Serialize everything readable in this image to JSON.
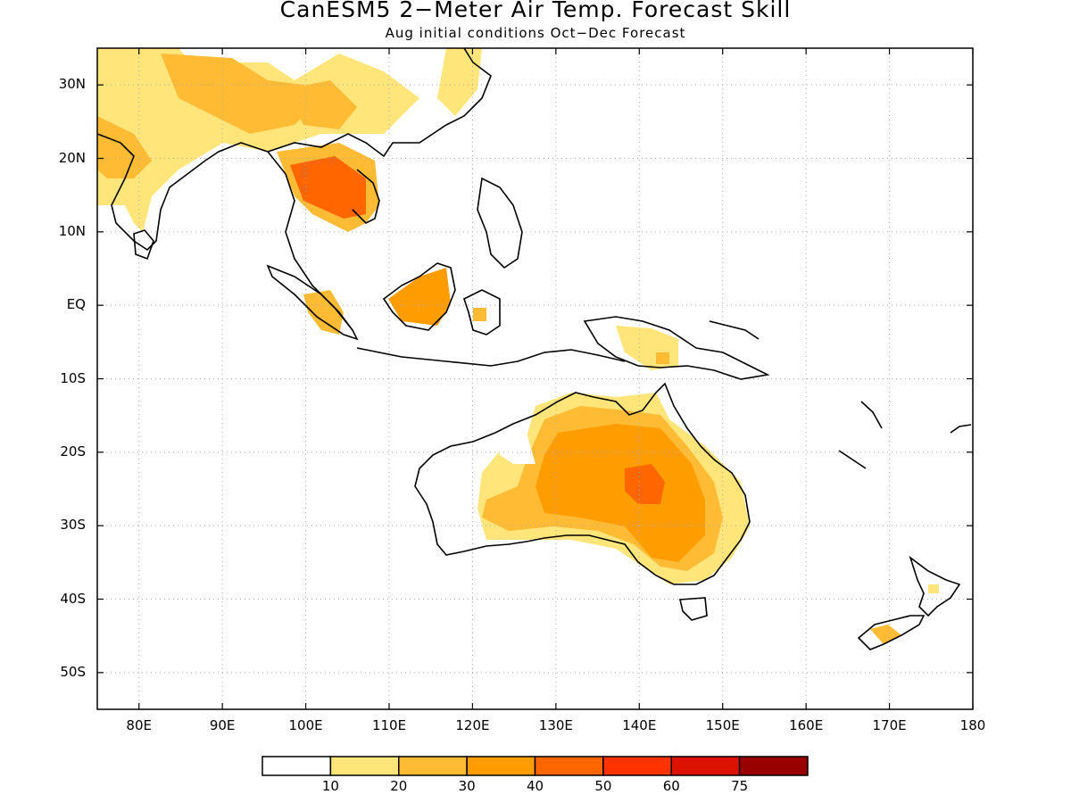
{
  "title": "CanESM5 2−Meter Air Temp. Forecast Skill",
  "subtitle": "Aug initial conditions  Oct−Dec Forecast",
  "lat_labels": [
    "30N",
    "20N",
    "10N",
    "EQ",
    "10S",
    "20S",
    "30S",
    "40S",
    "50S"
  ],
  "lat_values": [
    30,
    20,
    10,
    0,
    -10,
    -20,
    -30,
    -40,
    -50
  ],
  "lon_labels": [
    "80E",
    "90E",
    "100E",
    "110E",
    "120E",
    "130E",
    "140E",
    "150E",
    "160E",
    "170E",
    "180"
  ],
  "lon_values": [
    80,
    90,
    100,
    110,
    120,
    130,
    140,
    150,
    160,
    170,
    180
  ],
  "extent": {
    "lon_min": 75,
    "lon_max": 180,
    "lat_min": -55,
    "lat_max": 35
  },
  "colorbar": {
    "labels": [
      "10",
      "20",
      "30",
      "40",
      "50",
      "60",
      "75"
    ],
    "colors": [
      "#ffffff",
      "#ffe57a",
      "#ffbb33",
      "#ff9d00",
      "#ff6600",
      "#ff3300",
      "#dd1100",
      "#990000"
    ]
  }
}
